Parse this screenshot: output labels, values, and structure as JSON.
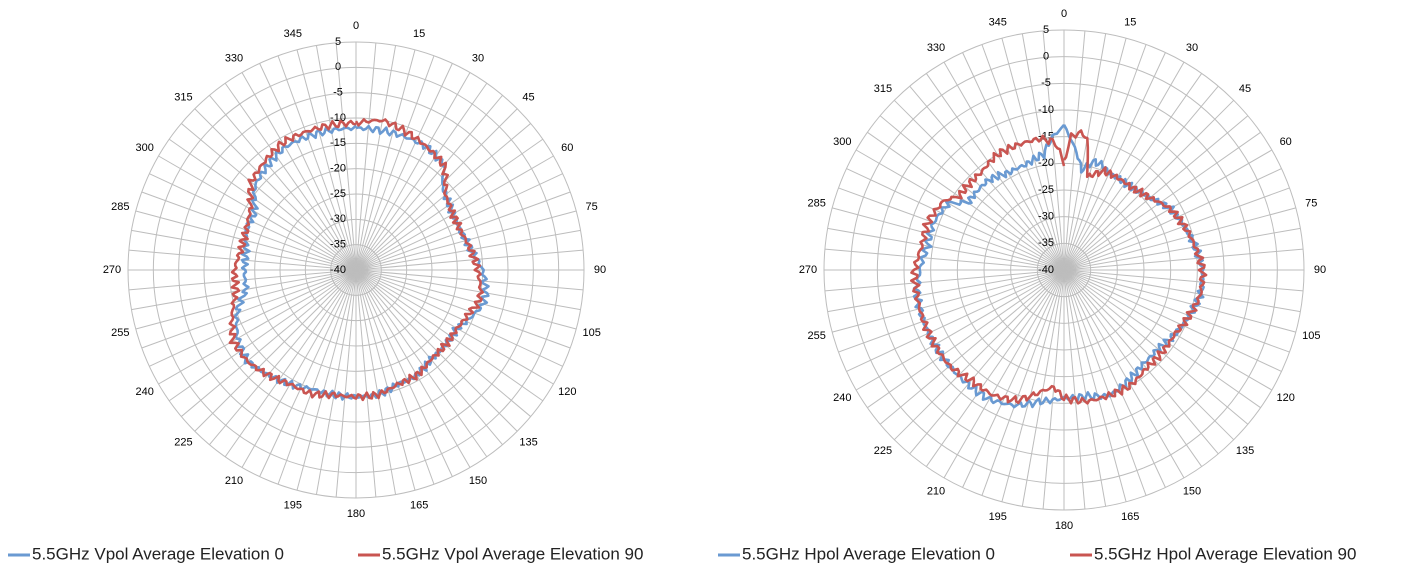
{
  "chart_data": [
    {
      "type": "radar",
      "angles": [
        0,
        15,
        30,
        45,
        60,
        75,
        90,
        105,
        120,
        135,
        150,
        165,
        180,
        195,
        210,
        225,
        240,
        255,
        270,
        285,
        300,
        315,
        330,
        345
      ],
      "rlim": [
        -40,
        5
      ],
      "rticks": [
        5,
        0,
        -5,
        -10,
        -15,
        -20,
        -25,
        -30,
        -35,
        -40
      ],
      "grid": true,
      "legend": "bottom",
      "series": [
        {
          "name": "5.5GHz Vpol Average Elevation 0",
          "color": "#6a9ad2",
          "theta": [
            0,
            10,
            20,
            30,
            40,
            45,
            50,
            60,
            70,
            80,
            90,
            100,
            105,
            110,
            120,
            130,
            140,
            150,
            160,
            170,
            180,
            190,
            200,
            210,
            220,
            230,
            240,
            250,
            260,
            270,
            280,
            290,
            300,
            310,
            320,
            330,
            340,
            350
          ],
          "values": [
            -12,
            -12,
            -12,
            -12,
            -13,
            -16,
            -17,
            -18,
            -18,
            -17,
            -15,
            -14,
            -14,
            -15,
            -17,
            -17,
            -17,
            -16,
            -16,
            -15,
            -15,
            -15,
            -15,
            -14,
            -13,
            -12,
            -13,
            -15,
            -18,
            -18,
            -18,
            -17,
            -17,
            -14,
            -13,
            -12,
            -12,
            -12
          ]
        },
        {
          "name": "5.5GHz Vpol Average Elevation 90",
          "color": "#c95551",
          "theta": [
            0,
            10,
            20,
            30,
            40,
            45,
            50,
            60,
            70,
            80,
            90,
            100,
            105,
            110,
            120,
            130,
            140,
            150,
            160,
            170,
            180,
            190,
            200,
            210,
            220,
            230,
            240,
            250,
            260,
            270,
            280,
            290,
            300,
            310,
            320,
            330,
            340,
            350
          ],
          "values": [
            -11,
            -10,
            -11,
            -12,
            -13,
            -15,
            -17,
            -18,
            -18,
            -17,
            -16,
            -15,
            -15,
            -16,
            -17,
            -17,
            -17,
            -16,
            -16,
            -15,
            -15,
            -15,
            -14,
            -14,
            -13,
            -12,
            -12,
            -14,
            -16,
            -16,
            -17,
            -17,
            -16,
            -13,
            -12,
            -11,
            -11,
            -11
          ]
        }
      ]
    },
    {
      "type": "radar",
      "angles": [
        0,
        15,
        30,
        45,
        60,
        75,
        90,
        105,
        120,
        135,
        150,
        165,
        180,
        195,
        210,
        225,
        240,
        255,
        270,
        285,
        300,
        315,
        330,
        345
      ],
      "rlim": [
        -40,
        5
      ],
      "rticks": [
        5,
        0,
        -5,
        -10,
        -15,
        -20,
        -25,
        -30,
        -35,
        -40
      ],
      "grid": true,
      "legend": "bottom",
      "series": [
        {
          "name": "5.5GHz Hpol Average Elevation 0",
          "color": "#6a9ad2",
          "theta": [
            0,
            5,
            10,
            15,
            20,
            25,
            30,
            40,
            50,
            60,
            70,
            80,
            90,
            100,
            110,
            120,
            130,
            140,
            150,
            160,
            170,
            180,
            190,
            200,
            210,
            220,
            230,
            240,
            250,
            260,
            270,
            280,
            290,
            300,
            305,
            310,
            320,
            330,
            340,
            350,
            355
          ],
          "values": [
            -13,
            -17,
            -21,
            -19,
            -19,
            -20,
            -20,
            -20,
            -19,
            -17,
            -16,
            -15,
            -14,
            -14,
            -15,
            -16,
            -17,
            -17,
            -16,
            -15,
            -16,
            -16,
            -15,
            -13,
            -12,
            -12,
            -12,
            -12,
            -12,
            -12,
            -13,
            -14,
            -14,
            -15,
            -18,
            -18,
            -18,
            -19,
            -19,
            -18,
            -15
          ]
        },
        {
          "name": "5.5GHz Hpol Average Elevation 90",
          "color": "#c95551",
          "theta": [
            0,
            3,
            7,
            10,
            14,
            18,
            22,
            26,
            30,
            40,
            50,
            60,
            70,
            80,
            90,
            100,
            110,
            120,
            130,
            140,
            150,
            160,
            170,
            180,
            185,
            190,
            200,
            210,
            220,
            230,
            240,
            250,
            260,
            270,
            280,
            290,
            300,
            305,
            310,
            320,
            330,
            340,
            350,
            356
          ],
          "values": [
            -20,
            -15,
            -14,
            -15,
            -22,
            -21,
            -20,
            -20,
            -20,
            -20,
            -19,
            -17,
            -16,
            -15,
            -14,
            -14,
            -15,
            -16,
            -16,
            -16,
            -15,
            -15,
            -15,
            -16,
            -18,
            -17,
            -14,
            -13,
            -13,
            -12,
            -12,
            -12,
            -12,
            -12,
            -13,
            -13,
            -14,
            -16,
            -16,
            -16,
            -15,
            -15,
            -15,
            -16
          ]
        }
      ]
    }
  ]
}
